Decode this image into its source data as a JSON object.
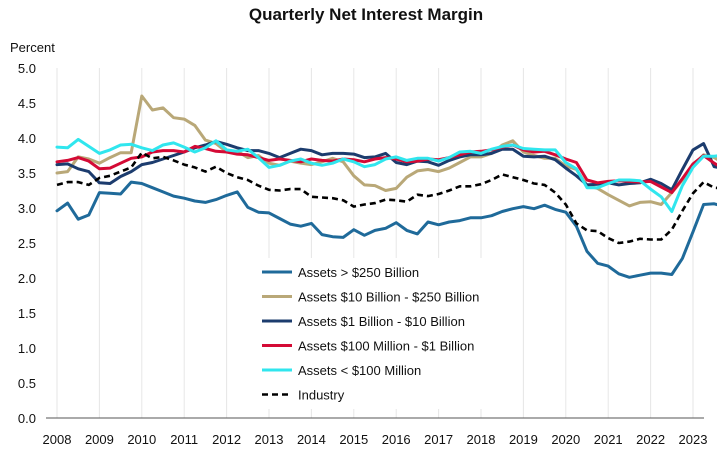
{
  "chart_data": {
    "type": "line",
    "title": "Quarterly Net Interest Margin",
    "ylabel": "Percent",
    "xlabel": "",
    "ylim": [
      0,
      5
    ],
    "yticks": [
      "0.0",
      "0.5",
      "1.0",
      "1.5",
      "2.0",
      "2.5",
      "3.0",
      "3.5",
      "4.0",
      "4.5",
      "5.0"
    ],
    "xticks": [
      "2008",
      "2009",
      "2010",
      "2011",
      "2012",
      "2013",
      "2014",
      "2015",
      "2016",
      "2017",
      "2018",
      "2019",
      "2020",
      "2021",
      "2022",
      "2023"
    ],
    "x_start_year": 2008,
    "quarters_per_year": 4,
    "grid": "vertical",
    "legend_position": "center",
    "series": [
      {
        "name": "Assets > $250 Billion",
        "color": "#1f6a9a",
        "dash": "",
        "values": [
          2.96,
          3.07,
          2.84,
          2.9,
          3.22,
          3.21,
          3.2,
          3.37,
          3.35,
          3.29,
          3.23,
          3.17,
          3.14,
          3.1,
          3.08,
          3.12,
          3.18,
          3.23,
          3.01,
          2.94,
          2.93,
          2.85,
          2.77,
          2.74,
          2.78,
          2.62,
          2.59,
          2.58,
          2.69,
          2.61,
          2.68,
          2.71,
          2.79,
          2.68,
          2.63,
          2.8,
          2.76,
          2.8,
          2.82,
          2.86,
          2.86,
          2.89,
          2.95,
          2.99,
          3.02,
          2.99,
          3.04,
          2.98,
          2.94,
          2.74,
          2.38,
          2.21,
          2.17,
          2.06,
          2.01,
          2.04,
          2.07,
          2.07,
          2.05,
          2.28,
          2.66,
          3.05,
          3.06,
          3.02
        ]
      },
      {
        "name": "Assets  $10 Billion - $250 Billion",
        "color": "#b9a878",
        "dash": "",
        "values": [
          3.5,
          3.52,
          3.73,
          3.7,
          3.64,
          3.72,
          3.79,
          3.79,
          4.6,
          4.4,
          4.43,
          4.29,
          4.27,
          4.18,
          3.97,
          3.92,
          3.8,
          3.81,
          3.72,
          3.75,
          3.64,
          3.61,
          3.67,
          3.64,
          3.62,
          3.66,
          3.71,
          3.66,
          3.46,
          3.33,
          3.32,
          3.25,
          3.28,
          3.44,
          3.53,
          3.55,
          3.52,
          3.57,
          3.65,
          3.73,
          3.73,
          3.78,
          3.9,
          3.96,
          3.8,
          3.75,
          3.71,
          3.71,
          3.6,
          3.55,
          3.32,
          3.28,
          3.19,
          3.11,
          3.03,
          3.08,
          3.09,
          3.05,
          3.22,
          3.4,
          3.61,
          3.76,
          3.72,
          3.63
        ]
      },
      {
        "name": "Assets  $1 Billion - $10 Billion",
        "color": "#1c3c6e",
        "dash": "",
        "values": [
          3.62,
          3.63,
          3.56,
          3.52,
          3.36,
          3.35,
          3.45,
          3.52,
          3.62,
          3.65,
          3.7,
          3.75,
          3.8,
          3.86,
          3.9,
          3.95,
          3.91,
          3.86,
          3.82,
          3.82,
          3.78,
          3.72,
          3.78,
          3.84,
          3.82,
          3.76,
          3.78,
          3.78,
          3.77,
          3.72,
          3.73,
          3.78,
          3.65,
          3.62,
          3.67,
          3.66,
          3.61,
          3.68,
          3.73,
          3.76,
          3.76,
          3.78,
          3.84,
          3.84,
          3.74,
          3.73,
          3.74,
          3.69,
          3.57,
          3.46,
          3.33,
          3.34,
          3.36,
          3.33,
          3.35,
          3.36,
          3.41,
          3.35,
          3.26,
          3.55,
          3.83,
          3.92,
          3.59,
          3.56
        ]
      },
      {
        "name": "Assets  $100 Million - $1 Billion",
        "color": "#d40a35",
        "dash": "",
        "values": [
          3.66,
          3.68,
          3.72,
          3.67,
          3.56,
          3.57,
          3.64,
          3.71,
          3.73,
          3.8,
          3.82,
          3.82,
          3.8,
          3.88,
          3.85,
          3.81,
          3.8,
          3.77,
          3.76,
          3.72,
          3.68,
          3.7,
          3.68,
          3.66,
          3.7,
          3.68,
          3.67,
          3.7,
          3.69,
          3.66,
          3.7,
          3.72,
          3.7,
          3.66,
          3.67,
          3.7,
          3.69,
          3.72,
          3.76,
          3.8,
          3.81,
          3.83,
          3.87,
          3.9,
          3.83,
          3.8,
          3.81,
          3.76,
          3.7,
          3.65,
          3.4,
          3.36,
          3.38,
          3.39,
          3.38,
          3.37,
          3.38,
          3.3,
          3.22,
          3.42,
          3.63,
          3.75,
          3.64,
          3.55
        ]
      },
      {
        "name": "Assets < $100 Million",
        "color": "#30e6ee",
        "dash": "",
        "values": [
          3.87,
          3.86,
          3.98,
          3.88,
          3.78,
          3.83,
          3.9,
          3.91,
          3.86,
          3.82,
          3.9,
          3.93,
          3.87,
          3.8,
          3.86,
          3.96,
          3.83,
          3.81,
          3.84,
          3.72,
          3.58,
          3.61,
          3.67,
          3.7,
          3.64,
          3.61,
          3.64,
          3.7,
          3.66,
          3.59,
          3.62,
          3.7,
          3.73,
          3.68,
          3.71,
          3.71,
          3.67,
          3.72,
          3.8,
          3.81,
          3.78,
          3.84,
          3.88,
          3.9,
          3.85,
          3.84,
          3.83,
          3.83,
          3.65,
          3.56,
          3.29,
          3.29,
          3.35,
          3.4,
          3.4,
          3.39,
          3.27,
          3.16,
          2.95,
          3.32,
          3.58,
          3.74,
          3.74,
          3.76
        ]
      },
      {
        "name": "Industry",
        "color": "#000000",
        "dash": "6,4",
        "values": [
          3.33,
          3.37,
          3.37,
          3.33,
          3.43,
          3.46,
          3.52,
          3.58,
          3.79,
          3.71,
          3.73,
          3.68,
          3.62,
          3.58,
          3.52,
          3.59,
          3.5,
          3.44,
          3.4,
          3.32,
          3.26,
          3.25,
          3.27,
          3.27,
          3.16,
          3.15,
          3.14,
          3.11,
          3.02,
          3.05,
          3.07,
          3.12,
          3.11,
          3.09,
          3.19,
          3.17,
          3.2,
          3.25,
          3.31,
          3.31,
          3.34,
          3.4,
          3.48,
          3.44,
          3.4,
          3.35,
          3.33,
          3.22,
          3.05,
          2.78,
          2.68,
          2.67,
          2.57,
          2.5,
          2.52,
          2.56,
          2.55,
          2.55,
          2.69,
          2.96,
          3.21,
          3.37,
          3.29,
          3.28
        ]
      }
    ]
  }
}
